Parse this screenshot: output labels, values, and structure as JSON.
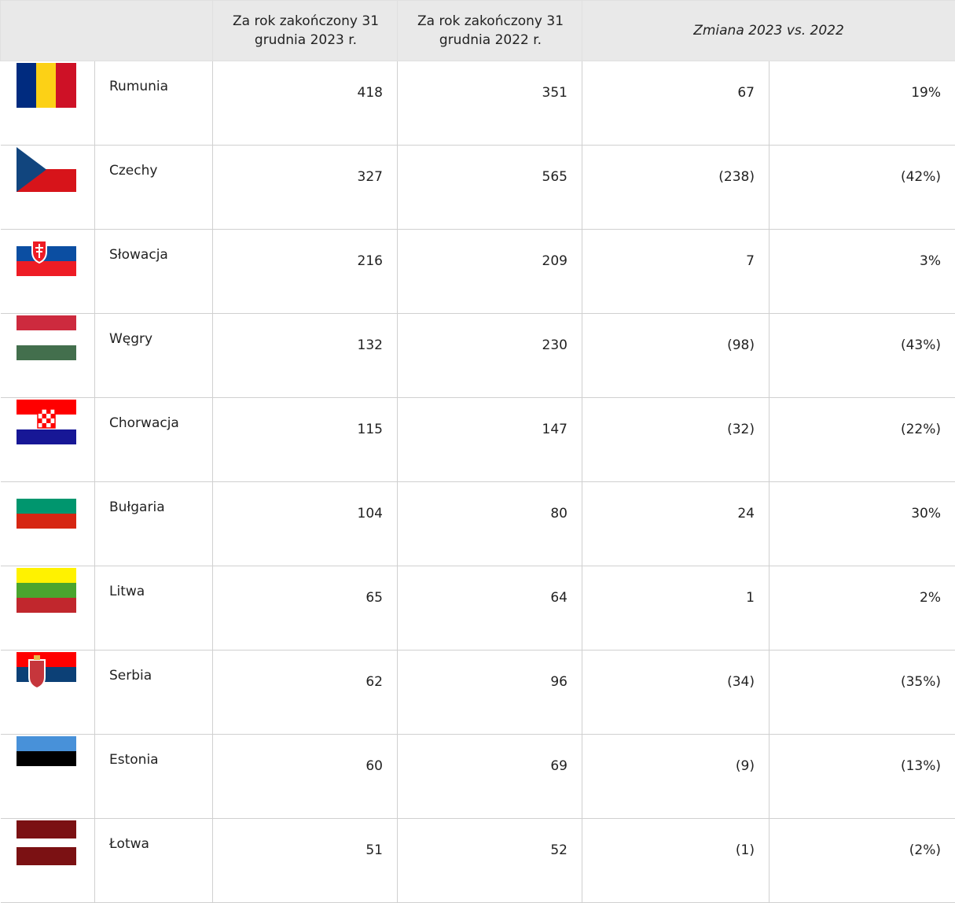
{
  "header": {
    "col_2023": "Za rok zakończony 31 grudnia 2023 r.",
    "col_2022": "Za rok zakończony 31 grudnia 2022 r.",
    "change": "Zmiana 2023 vs. 2022"
  },
  "table": {
    "rows": [
      [
        "Rumunia",
        "418",
        "351",
        "67",
        "19%"
      ],
      [
        "Czechy",
        "327",
        "565",
        "(238)",
        "(42%)"
      ],
      [
        "Słowacja",
        "216",
        "209",
        "7",
        "3%"
      ],
      [
        "Węgry",
        "132",
        "230",
        "(98)",
        "(43%)"
      ],
      [
        "Chorwacja",
        "115",
        "147",
        "(32)",
        "(22%)"
      ],
      [
        "Bułgaria",
        "104",
        "80",
        "24",
        "30%"
      ],
      [
        "Litwa",
        "65",
        "64",
        "1",
        "2%"
      ],
      [
        "Serbia",
        "62",
        "96",
        "(34)",
        "(35%)"
      ],
      [
        "Estonia",
        "60",
        "69",
        "(9)",
        "(13%)"
      ],
      [
        "Łotwa",
        "51",
        "52",
        "(1)",
        "(2%)"
      ]
    ]
  }
}
